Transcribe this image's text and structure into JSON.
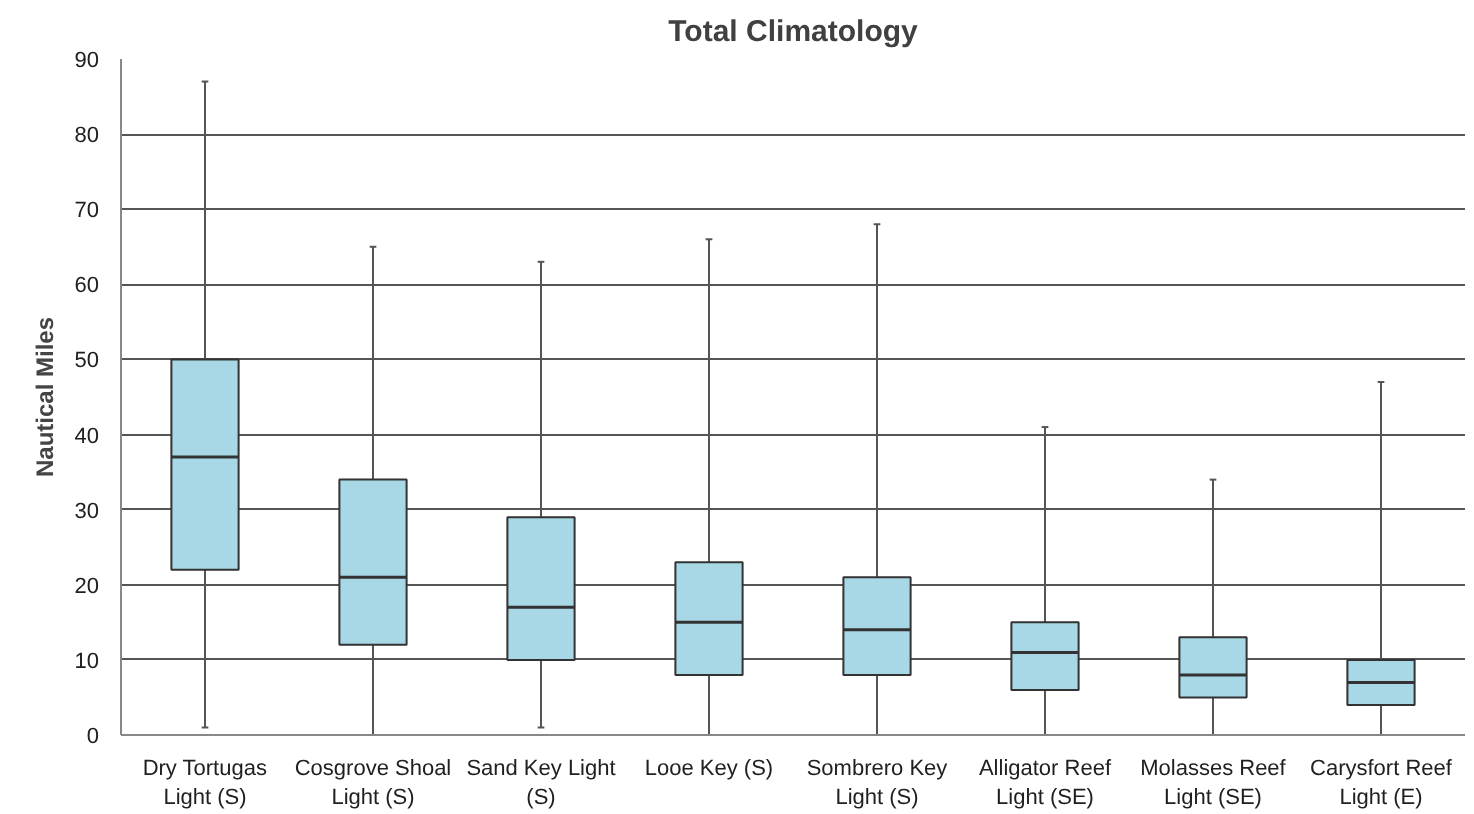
{
  "chart_data": {
    "type": "box",
    "title": "Total Climatology",
    "ylabel": "Nautical Miles",
    "categories": [
      "Dry Tortugas Light (S)",
      "Cosgrove Shoal Light (S)",
      "Sand Key Light (S)",
      "Looe Key (S)",
      "Sombrero Key Light (S)",
      "Alligator Reef Light (SE)",
      "Molasses Reef Light (SE)",
      "Carysfort Reef Light (E)"
    ],
    "color": "#a8d8e6",
    "boxes": [
      {
        "low": 1,
        "q1": 22,
        "median": 37,
        "q3": 50,
        "high": 87
      },
      {
        "low": 0,
        "q1": 12,
        "median": 21,
        "q3": 34,
        "high": 65
      },
      {
        "low": 1,
        "q1": 10,
        "median": 17,
        "q3": 29,
        "high": 63
      },
      {
        "low": 0,
        "q1": 8,
        "median": 15,
        "q3": 23,
        "high": 66
      },
      {
        "low": 0,
        "q1": 8,
        "median": 14,
        "q3": 21,
        "high": 68
      },
      {
        "low": 0,
        "q1": 6,
        "median": 11,
        "q3": 15,
        "high": 41
      },
      {
        "low": 0,
        "q1": 5,
        "median": 8,
        "q3": 13,
        "high": 34
      },
      {
        "low": 0,
        "q1": 4,
        "median": 7,
        "q3": 10,
        "high": 47
      }
    ],
    "ylim": [
      0,
      90
    ],
    "yticks": [
      0,
      10,
      20,
      30,
      40,
      50,
      60,
      70,
      80,
      90
    ],
    "grid": "y"
  }
}
